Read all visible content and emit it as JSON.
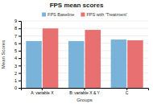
{
  "chart_data": {
    "type": "bar",
    "title": "FPS mean scores",
    "xlabel": "Groups",
    "ylabel": "Mean Scores",
    "categories": [
      "A: variable X",
      "B: variable X & Y",
      "C"
    ],
    "series": [
      {
        "name": "FPS Baseline",
        "color": "#7ab3d9",
        "values": [
          6.3,
          6.3,
          6.5
        ]
      },
      {
        "name": "FPS with 'Treatment'",
        "color": "#e87070",
        "values": [
          8.0,
          7.8,
          6.4
        ]
      }
    ],
    "ylim": [
      0,
      9
    ],
    "yticks": [
      0,
      1,
      2,
      3,
      4,
      5,
      6,
      7,
      8,
      9
    ],
    "grid": true,
    "legend": "top"
  }
}
